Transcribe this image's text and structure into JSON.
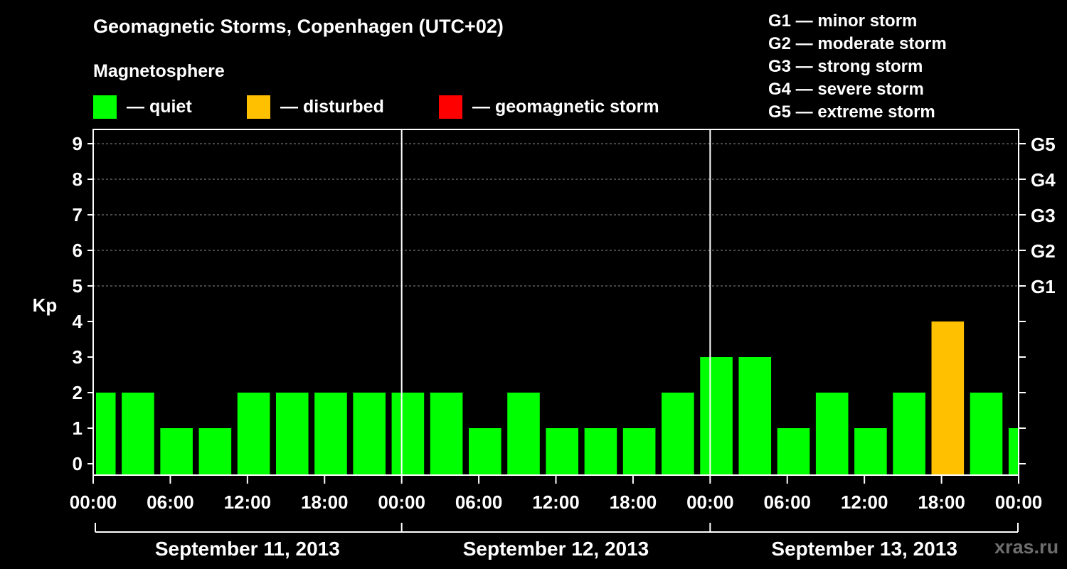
{
  "title": "Geomagnetic Storms, Copenhagen (UTC+02)",
  "subtitle": "Magnetosphere",
  "legend": [
    {
      "label": "— quiet",
      "color": "#00ff00"
    },
    {
      "label": "— disturbed",
      "color": "#ffc000"
    },
    {
      "label": "— geomagnetic storm",
      "color": "#ff0000"
    }
  ],
  "g_scale": [
    "G1 — minor storm",
    "G2 — moderate storm",
    "G3 — strong storm",
    "G4 — severe storm",
    "G5 — extreme storm"
  ],
  "watermark": "xras.ru",
  "chart_data": {
    "type": "bar",
    "ylabel": "Kp",
    "ylim": [
      0,
      9
    ],
    "xlim_hours": [
      0,
      72
    ],
    "grid": "dashed horizontal lines at Kp 5-9",
    "day_separators_hours": [
      24,
      48
    ],
    "yticks": [
      "0",
      "1",
      "2",
      "3",
      "4",
      "5",
      "6",
      "7",
      "8",
      "9"
    ],
    "right_ticks": [
      {
        "kp": 5,
        "label": "G1"
      },
      {
        "kp": 6,
        "label": "G2"
      },
      {
        "kp": 7,
        "label": "G3"
      },
      {
        "kp": 8,
        "label": "G4"
      },
      {
        "kp": 9,
        "label": "G5"
      }
    ],
    "xtick_labels": [
      "00:00",
      "06:00",
      "12:00",
      "18:00",
      "00:00",
      "06:00",
      "12:00",
      "18:00",
      "00:00",
      "06:00",
      "12:00",
      "18:00",
      "00:00"
    ],
    "dates": [
      "September 11, 2013",
      "September 12, 2013",
      "September 13, 2013"
    ],
    "bars": [
      {
        "start": 0,
        "end": 1.8,
        "kp": 2,
        "status": "quiet"
      },
      {
        "start": 2,
        "end": 4.8,
        "kp": 2,
        "status": "quiet"
      },
      {
        "start": 5,
        "end": 7.8,
        "kp": 1,
        "status": "quiet"
      },
      {
        "start": 8,
        "end": 10.8,
        "kp": 1,
        "status": "quiet"
      },
      {
        "start": 11,
        "end": 13.8,
        "kp": 2,
        "status": "quiet"
      },
      {
        "start": 14,
        "end": 16.8,
        "kp": 2,
        "status": "quiet"
      },
      {
        "start": 17,
        "end": 19.8,
        "kp": 2,
        "status": "quiet"
      },
      {
        "start": 20,
        "end": 22.8,
        "kp": 2,
        "status": "quiet"
      },
      {
        "start": 23,
        "end": 25.8,
        "kp": 2,
        "status": "quiet"
      },
      {
        "start": 26,
        "end": 28.8,
        "kp": 2,
        "status": "quiet"
      },
      {
        "start": 29,
        "end": 31.8,
        "kp": 1,
        "status": "quiet"
      },
      {
        "start": 32,
        "end": 34.8,
        "kp": 2,
        "status": "quiet"
      },
      {
        "start": 35,
        "end": 37.8,
        "kp": 1,
        "status": "quiet"
      },
      {
        "start": 38,
        "end": 40.8,
        "kp": 1,
        "status": "quiet"
      },
      {
        "start": 41,
        "end": 43.8,
        "kp": 1,
        "status": "quiet"
      },
      {
        "start": 44,
        "end": 46.8,
        "kp": 2,
        "status": "quiet"
      },
      {
        "start": 47,
        "end": 49.8,
        "kp": 3,
        "status": "quiet"
      },
      {
        "start": 50,
        "end": 52.8,
        "kp": 3,
        "status": "quiet"
      },
      {
        "start": 53,
        "end": 55.8,
        "kp": 1,
        "status": "quiet"
      },
      {
        "start": 56,
        "end": 58.8,
        "kp": 2,
        "status": "quiet"
      },
      {
        "start": 59,
        "end": 61.8,
        "kp": 1,
        "status": "quiet"
      },
      {
        "start": 62,
        "end": 64.8,
        "kp": 2,
        "status": "quiet"
      },
      {
        "start": 65,
        "end": 67.8,
        "kp": 4,
        "status": "disturbed"
      },
      {
        "start": 68,
        "end": 70.8,
        "kp": 2,
        "status": "quiet"
      },
      {
        "start": 71,
        "end": 72,
        "kp": 1,
        "status": "quiet"
      }
    ],
    "status_colors": {
      "quiet": "#00ff00",
      "disturbed": "#ffc000",
      "storm": "#ff0000"
    }
  }
}
